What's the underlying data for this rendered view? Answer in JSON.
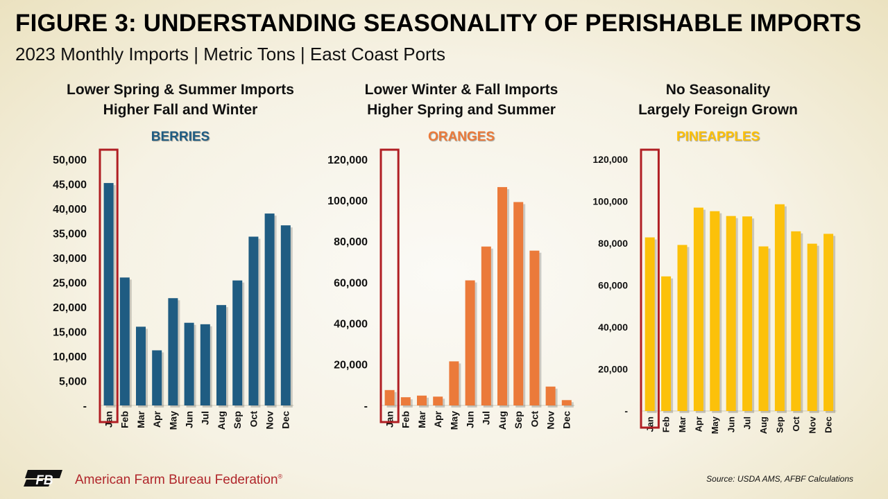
{
  "title": "FIGURE 3: UNDERSTANDING SEASONALITY OF PERISHABLE IMPORTS",
  "subtitle": "2023 Monthly Imports | Metric Tons | East Coast Ports",
  "footer": {
    "org": "American Farm Bureau Federation",
    "org_mark": "®",
    "source": "Source: USDA AMS, AFBF Calculations",
    "logo_text": "FB"
  },
  "colors": {
    "berries": "#1f5c82",
    "oranges": "#eb7a3a",
    "pineapples": "#fcc10a",
    "highlight": "#b01e23",
    "brand": "#b0262b"
  },
  "chart_data": [
    {
      "type": "bar",
      "header_line1": "Lower Spring & Summer Imports",
      "header_line2": "Higher Fall and Winter",
      "series_label": "BERRIES",
      "categories": [
        "Jan",
        "Feb",
        "Mar",
        "Apr",
        "May",
        "Jun",
        "Jul",
        "Aug",
        "Sep",
        "Oct",
        "Nov",
        "Dec"
      ],
      "values": [
        45200,
        26000,
        16000,
        11200,
        21800,
        16800,
        16500,
        20400,
        25400,
        34300,
        39000,
        36600
      ],
      "ylim": [
        0,
        50000
      ],
      "ticks": [
        0,
        5000,
        10000,
        15000,
        20000,
        25000,
        30000,
        35000,
        40000,
        45000,
        50000
      ],
      "tick_labels": [
        "-",
        "5,000",
        "10,000",
        "15,000",
        "20,000",
        "25,000",
        "30,000",
        "35,000",
        "40,000",
        "45,000",
        "50,000"
      ],
      "highlight": "Jan",
      "grid": false,
      "color_key": "berries"
    },
    {
      "type": "bar",
      "header_line1": "Lower Winter & Fall Imports",
      "header_line2": "Higher Spring and Summer",
      "series_label": "ORANGES",
      "categories": [
        "Jan",
        "Feb",
        "Mar",
        "Apr",
        "May",
        "Jun",
        "Jul",
        "Aug",
        "Sep",
        "Oct",
        "Nov",
        "Dec"
      ],
      "values": [
        7500,
        4000,
        4800,
        4300,
        21500,
        61000,
        77500,
        106500,
        99200,
        75500,
        9200,
        2600
      ],
      "ylim": [
        0,
        120000
      ],
      "ticks": [
        0,
        20000,
        40000,
        60000,
        80000,
        100000,
        120000
      ],
      "tick_labels": [
        "-",
        "20,000",
        "40,000",
        "60,000",
        "80,000",
        "100,000",
        "120,000"
      ],
      "highlight": "Jan",
      "grid": false,
      "color_key": "oranges"
    },
    {
      "type": "bar",
      "header_line1": "No Seasonality",
      "header_line2": "Largely Foreign Grown",
      "series_label": "PINEAPPLES",
      "categories": [
        "Jan",
        "Feb",
        "Mar",
        "Apr",
        "May",
        "Jun",
        "Jul",
        "Aug",
        "Sep",
        "Oct",
        "Nov",
        "Dec"
      ],
      "values": [
        82800,
        64200,
        79200,
        97000,
        95300,
        93000,
        92800,
        78500,
        98600,
        85700,
        79800,
        84500
      ],
      "ylim": [
        0,
        120000
      ],
      "ticks": [
        0,
        20000,
        40000,
        60000,
        80000,
        100000,
        120000
      ],
      "tick_labels": [
        "-",
        "20,000",
        "40,000",
        "60,000",
        "80,000",
        "100,000",
        "120,000"
      ],
      "highlight": "Jan",
      "grid": false,
      "color_key": "pineapples"
    }
  ]
}
